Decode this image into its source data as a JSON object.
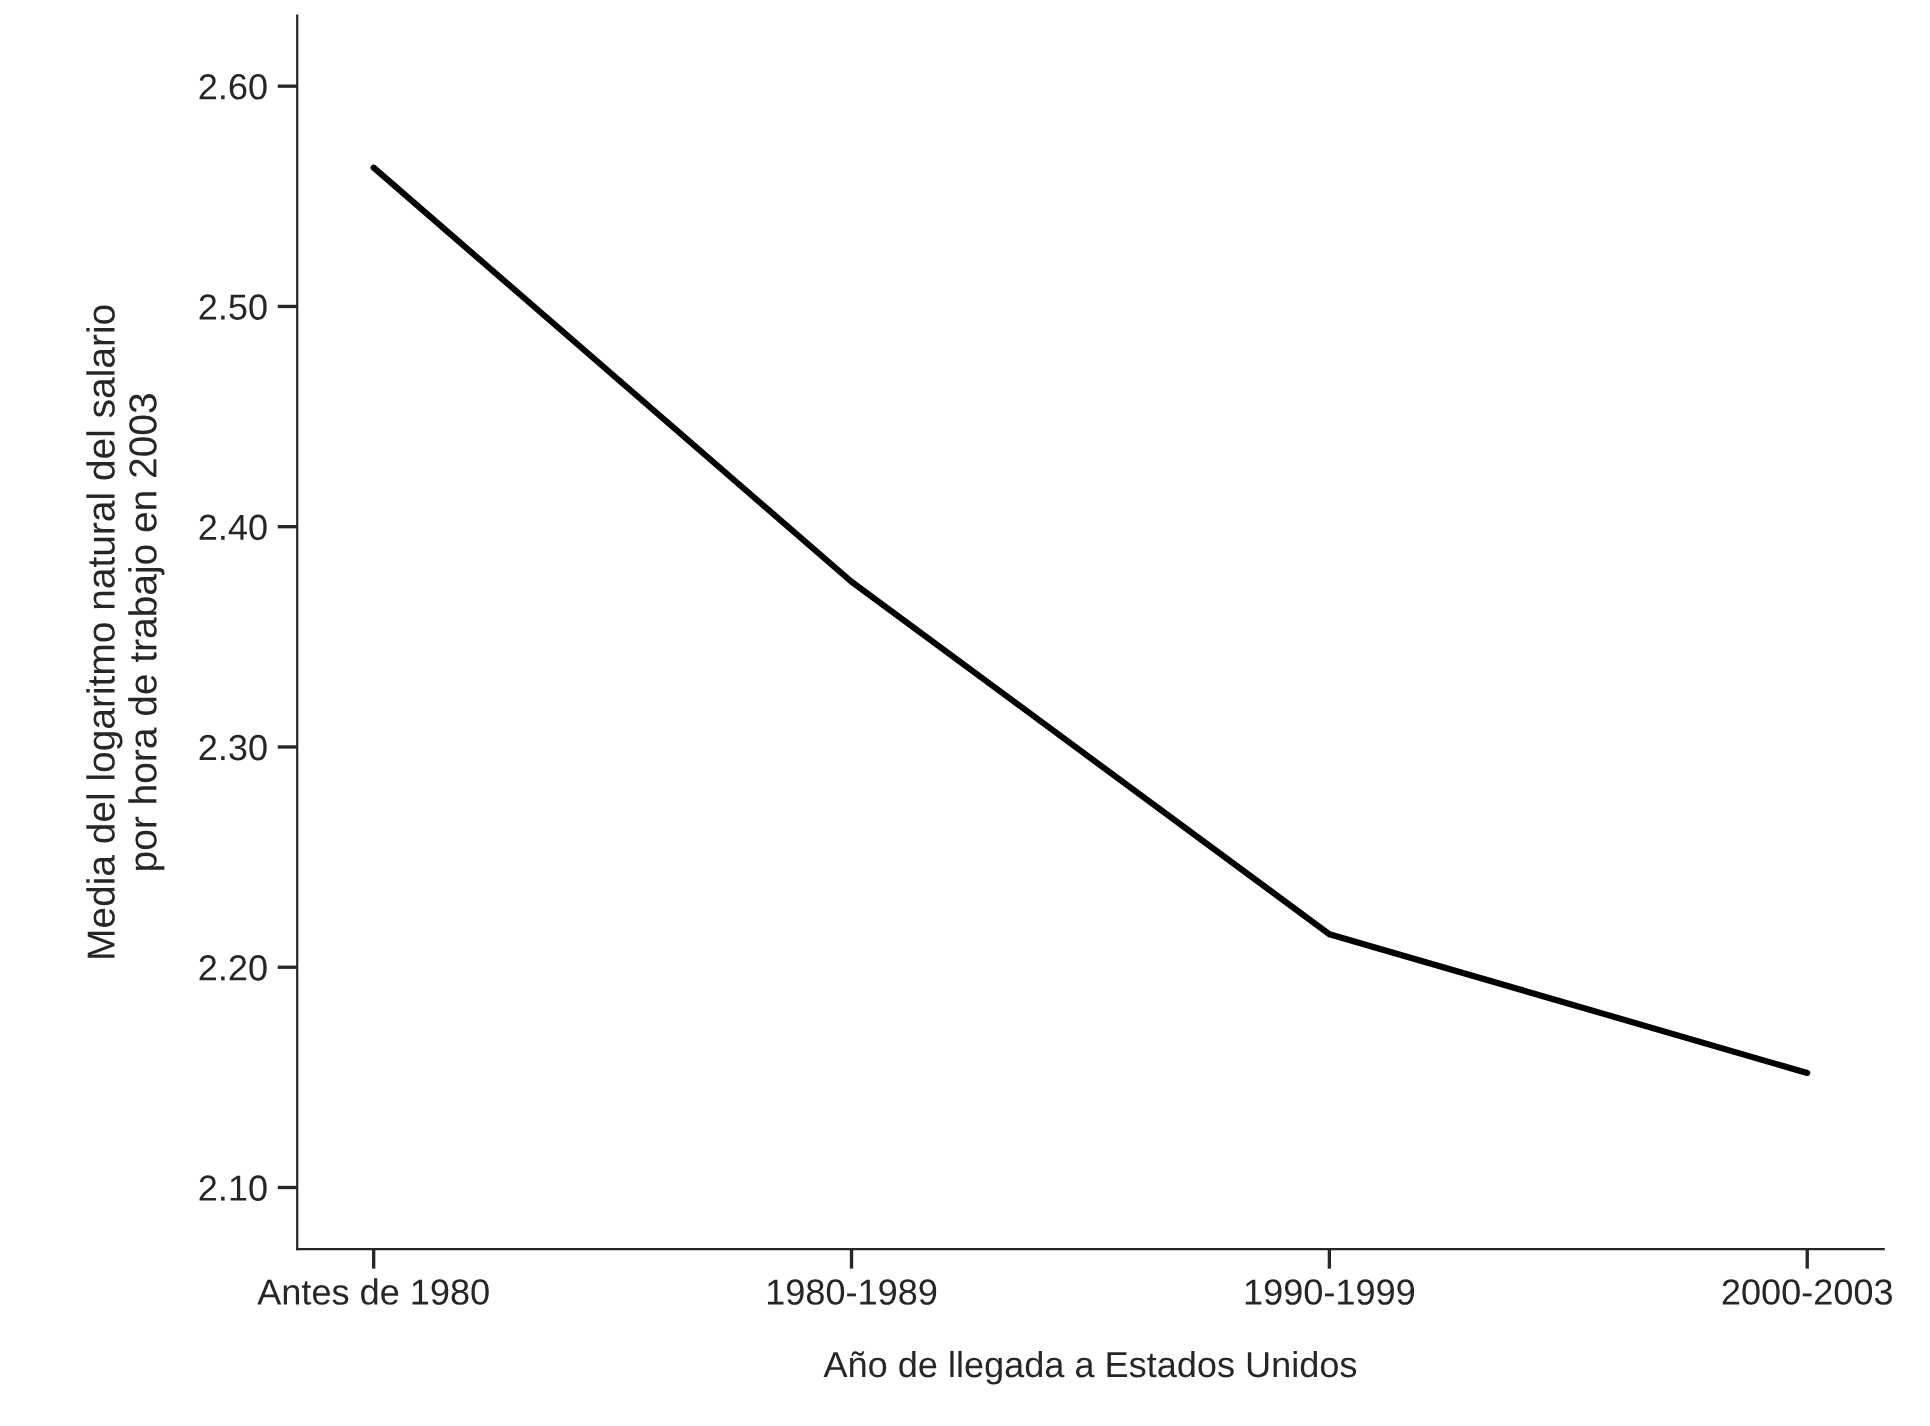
{
  "chart_data": {
    "type": "line",
    "xlabel": "Año de llegada a Estados Unidos",
    "ylabel": "Media del logaritmo natural del salario\npor hora de trabajo en 2003",
    "categories": [
      "Antes de 1980",
      "1980-1989",
      "1990-1999",
      "2000-2003"
    ],
    "series": [
      {
        "color": "#000000",
        "values": [
          2.563,
          2.375,
          2.215,
          2.152
        ]
      }
    ],
    "ylim": [
      2.072,
      2.632
    ],
    "yticks": [
      {
        "value": 2.1,
        "label": "2.10"
      },
      {
        "value": 2.2,
        "label": "2.20"
      },
      {
        "value": 2.3,
        "label": "2.30"
      },
      {
        "value": 2.4,
        "label": "2.40"
      },
      {
        "value": 2.5,
        "label": "2.50"
      },
      {
        "value": 2.6,
        "label": "2.60"
      }
    ],
    "grid": false,
    "legend": false,
    "marker": "none",
    "line_style": "solid"
  }
}
